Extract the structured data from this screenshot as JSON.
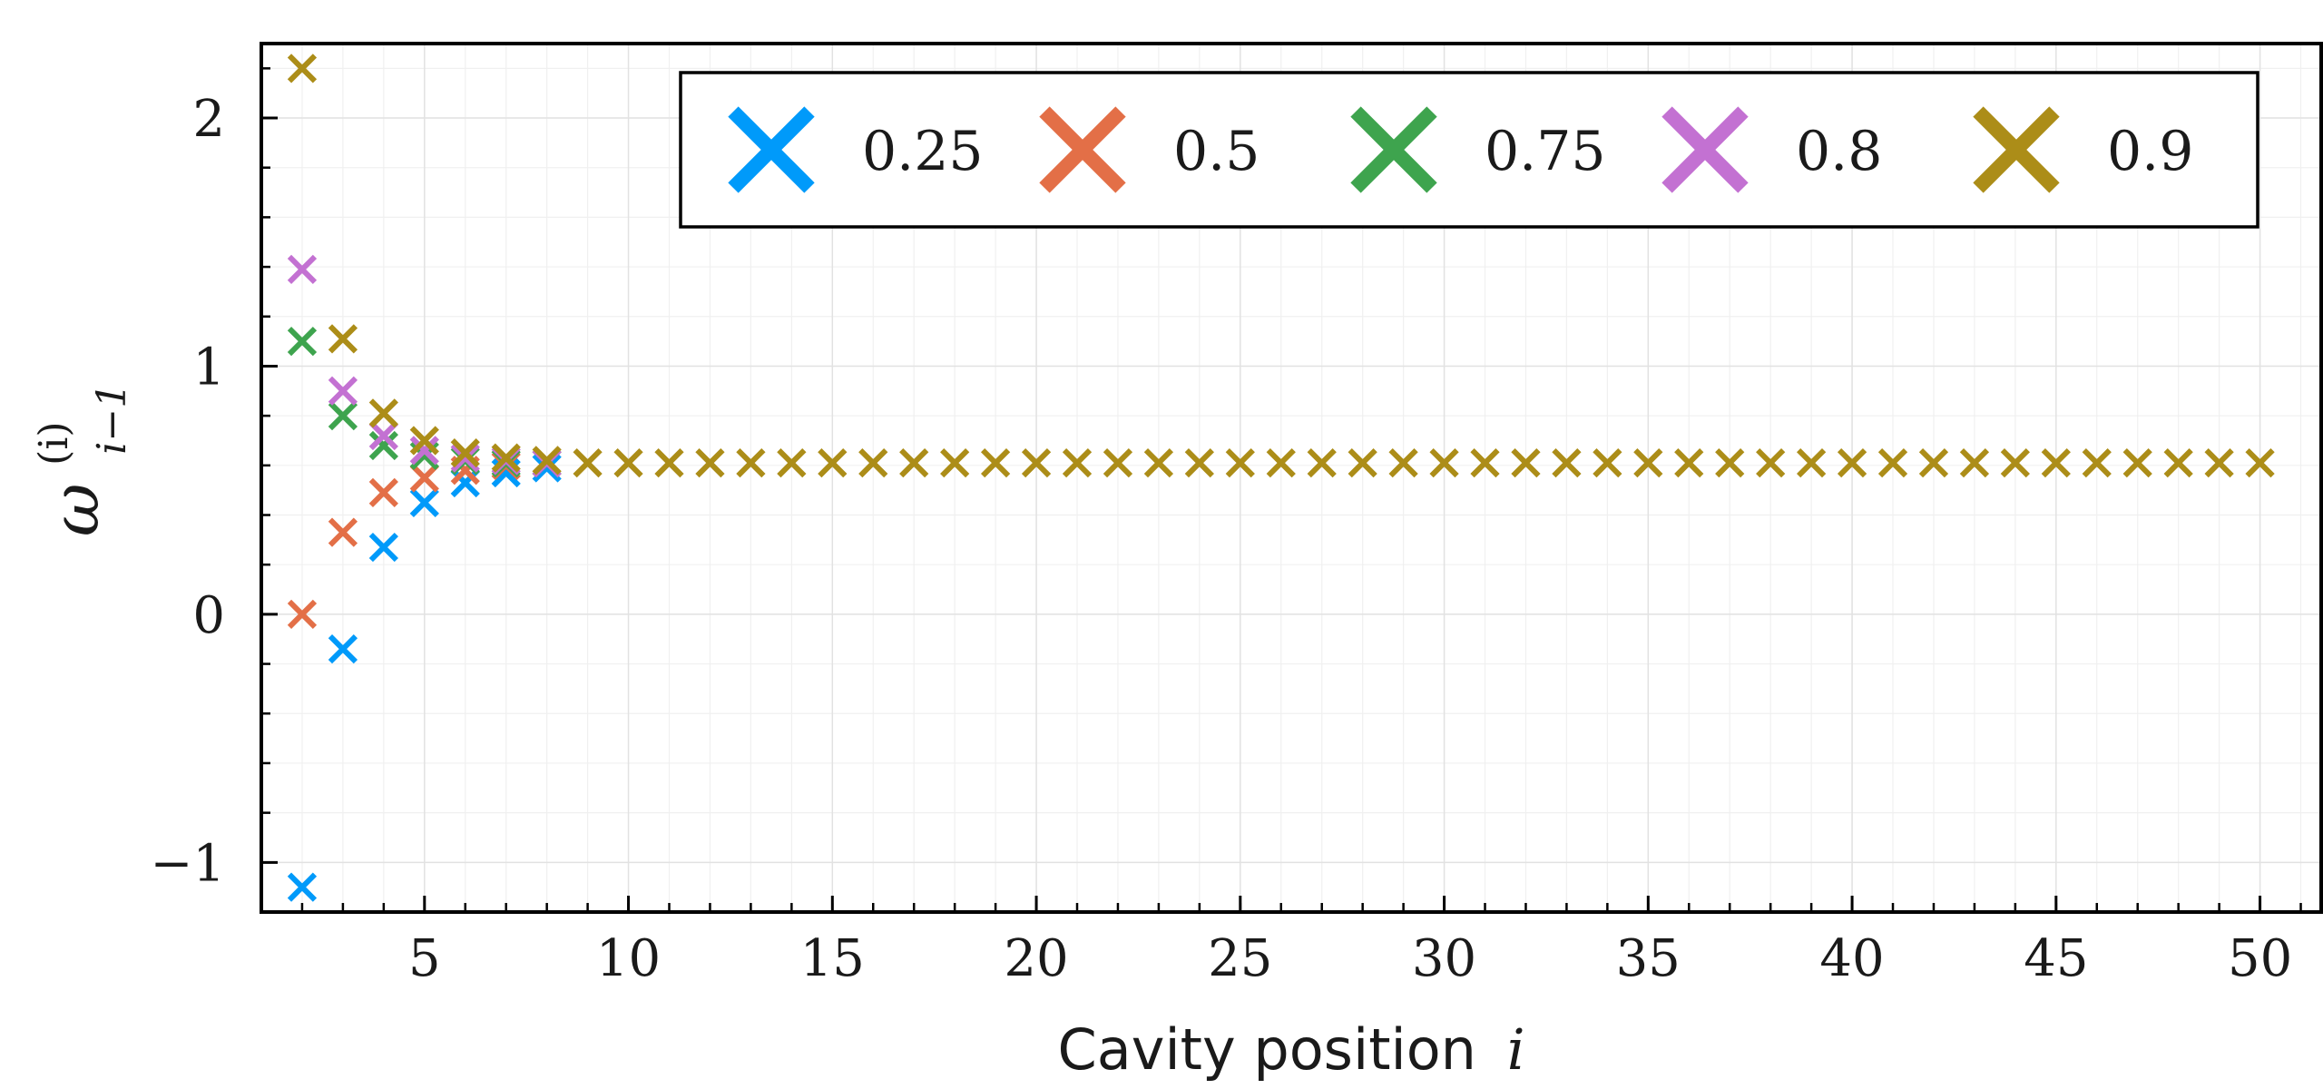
{
  "chart_data": {
    "type": "scatter",
    "marker": "x",
    "xlabel": "Cavity position",
    "xlabel_var": "i",
    "ylabel": "ω",
    "ylabel_sup": "(i)",
    "ylabel_sub": "i−1",
    "xlim": [
      1,
      51.5
    ],
    "ylim": [
      -1.2,
      2.3
    ],
    "xticks": [
      5,
      10,
      15,
      20,
      25,
      30,
      35,
      40,
      45,
      50
    ],
    "xtick_labels": [
      "5",
      "10",
      "15",
      "20",
      "25",
      "30",
      "35",
      "40",
      "45",
      "50"
    ],
    "yticks": [
      -1,
      0,
      1,
      2
    ],
    "ytick_labels": [
      "−1",
      "0",
      "1",
      "2"
    ],
    "grid": true,
    "legend_position": "top-right",
    "legend_columns": 5,
    "series": [
      {
        "name": "0.25",
        "color": "#009AFA",
        "x": [
          2,
          3,
          4,
          5,
          6,
          7,
          8
        ],
        "y": [
          -1.1,
          -0.14,
          0.27,
          0.45,
          0.53,
          0.57,
          0.59
        ]
      },
      {
        "name": "0.5",
        "color": "#E36F47",
        "x": [
          2,
          3,
          4,
          5,
          6,
          7,
          8
        ],
        "y": [
          0.0,
          0.33,
          0.49,
          0.55,
          0.58,
          0.6,
          0.61
        ]
      },
      {
        "name": "0.75",
        "color": "#3EA44E",
        "x": [
          2,
          3,
          4,
          5,
          6,
          7,
          8
        ],
        "y": [
          1.1,
          0.8,
          0.68,
          0.64,
          0.62,
          0.61,
          0.61
        ]
      },
      {
        "name": "0.8",
        "color": "#C371D2",
        "x": [
          2,
          3,
          4,
          5,
          6,
          7,
          8
        ],
        "y": [
          1.39,
          0.9,
          0.72,
          0.66,
          0.63,
          0.62,
          0.61
        ]
      },
      {
        "name": "0.9",
        "color": "#AC8D18",
        "x": [
          2,
          3,
          4,
          5,
          6,
          7,
          8,
          9,
          10,
          11,
          12,
          13,
          14,
          15,
          16,
          17,
          18,
          19,
          20,
          21,
          22,
          23,
          24,
          25,
          26,
          27,
          28,
          29,
          30,
          31,
          32,
          33,
          34,
          35,
          36,
          37,
          38,
          39,
          40,
          41,
          42,
          43,
          44,
          45,
          46,
          47,
          48,
          49,
          50
        ],
        "y": [
          2.2,
          1.11,
          0.81,
          0.7,
          0.65,
          0.63,
          0.62,
          0.61,
          0.61,
          0.61,
          0.61,
          0.61,
          0.61,
          0.61,
          0.61,
          0.61,
          0.61,
          0.61,
          0.61,
          0.61,
          0.61,
          0.61,
          0.61,
          0.61,
          0.61,
          0.61,
          0.61,
          0.61,
          0.61,
          0.61,
          0.61,
          0.61,
          0.61,
          0.61,
          0.61,
          0.61,
          0.61,
          0.61,
          0.61,
          0.61,
          0.61,
          0.61,
          0.61,
          0.61,
          0.61,
          0.61,
          0.61,
          0.61,
          0.61
        ]
      }
    ]
  }
}
